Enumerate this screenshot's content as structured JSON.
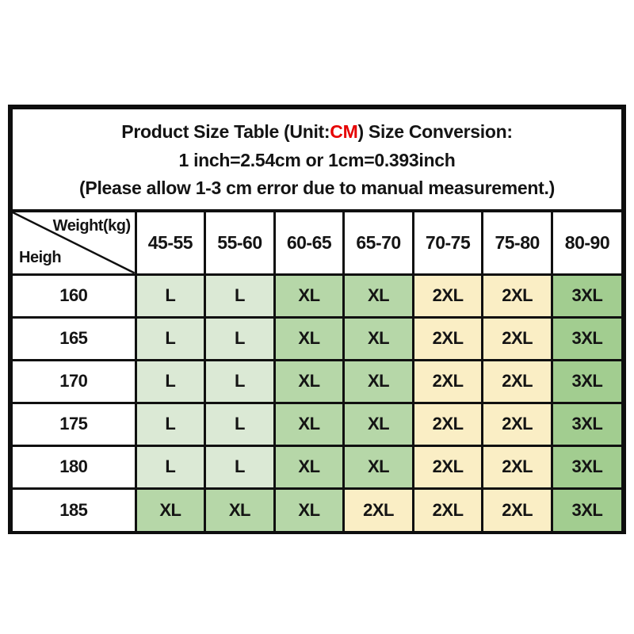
{
  "title": {
    "line1_prefix": "Product Size Table (Unit:",
    "line1_unit": "CM",
    "line1_suffix": ") Size Conversion:",
    "line2": "1 inch=2.54cm or 1cm=0.393inch",
    "line3": "(Please allow 1-3 cm error due to manual measurement.)"
  },
  "colors": {
    "unit_red": "#e60000",
    "border_black": "#0e0e0e",
    "size_L_bg": "#dbe9d5",
    "size_XL_bg": "#b6d7a8",
    "size_2XL_bg": "#faeec5",
    "size_3XL_bg": "#a2cd90"
  },
  "chart_data": {
    "type": "table",
    "corner": {
      "top_right": "Weight(kg)",
      "bottom_left": "Heigh"
    },
    "weight_columns": [
      "45-55",
      "55-60",
      "60-65",
      "65-70",
      "70-75",
      "75-80",
      "80-90"
    ],
    "rows": [
      {
        "height": "160",
        "sizes": [
          "L",
          "L",
          "XL",
          "XL",
          "2XL",
          "2XL",
          "3XL"
        ]
      },
      {
        "height": "165",
        "sizes": [
          "L",
          "L",
          "XL",
          "XL",
          "2XL",
          "2XL",
          "3XL"
        ]
      },
      {
        "height": "170",
        "sizes": [
          "L",
          "L",
          "XL",
          "XL",
          "2XL",
          "2XL",
          "3XL"
        ]
      },
      {
        "height": "175",
        "sizes": [
          "L",
          "L",
          "XL",
          "XL",
          "2XL",
          "2XL",
          "3XL"
        ]
      },
      {
        "height": "180",
        "sizes": [
          "L",
          "L",
          "XL",
          "XL",
          "2XL",
          "2XL",
          "3XL"
        ]
      },
      {
        "height": "185",
        "sizes": [
          "XL",
          "XL",
          "XL",
          "2XL",
          "2XL",
          "2XL",
          "3XL"
        ]
      }
    ]
  }
}
